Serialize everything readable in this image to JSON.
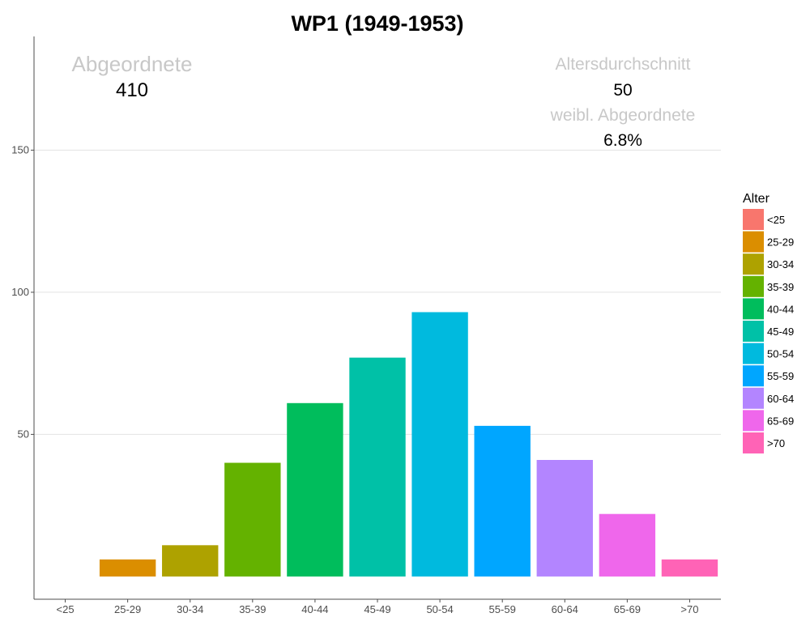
{
  "chart_data": {
    "type": "bar",
    "title": "WP1 (1949-1953)",
    "xlabel": "",
    "ylabel": "",
    "categories": [
      "<25",
      "25-29",
      "30-34",
      "35-39",
      "40-44",
      "45-49",
      "50-54",
      "55-59",
      "60-64",
      "65-69",
      ">70"
    ],
    "values": [
      0,
      6,
      11,
      40,
      61,
      77,
      93,
      53,
      41,
      22,
      6
    ],
    "ylim": [
      -8,
      190
    ],
    "yticks": [
      50,
      100,
      150
    ],
    "grid": "horizontal",
    "legend": {
      "title": "Alter",
      "position": "right",
      "entries": [
        "<25",
        "25-29",
        "30-34",
        "35-39",
        "40-44",
        "45-49",
        "50-54",
        "55-59",
        "60-64",
        "65-69",
        ">70"
      ]
    },
    "colors": [
      "#F8766D",
      "#DB8E00",
      "#AEA200",
      "#64B200",
      "#00BD5C",
      "#00C1A7",
      "#00BADE",
      "#00A6FF",
      "#B385FF",
      "#EF67EB",
      "#FF63B6"
    ],
    "annotations": {
      "members_label": "Abgeordnete",
      "members_value": "410",
      "avg_age_label": "Altersdurchschnitt",
      "avg_age_value": "50",
      "female_label": "weibl. Abgeordnete",
      "female_value": "6.8%"
    }
  }
}
